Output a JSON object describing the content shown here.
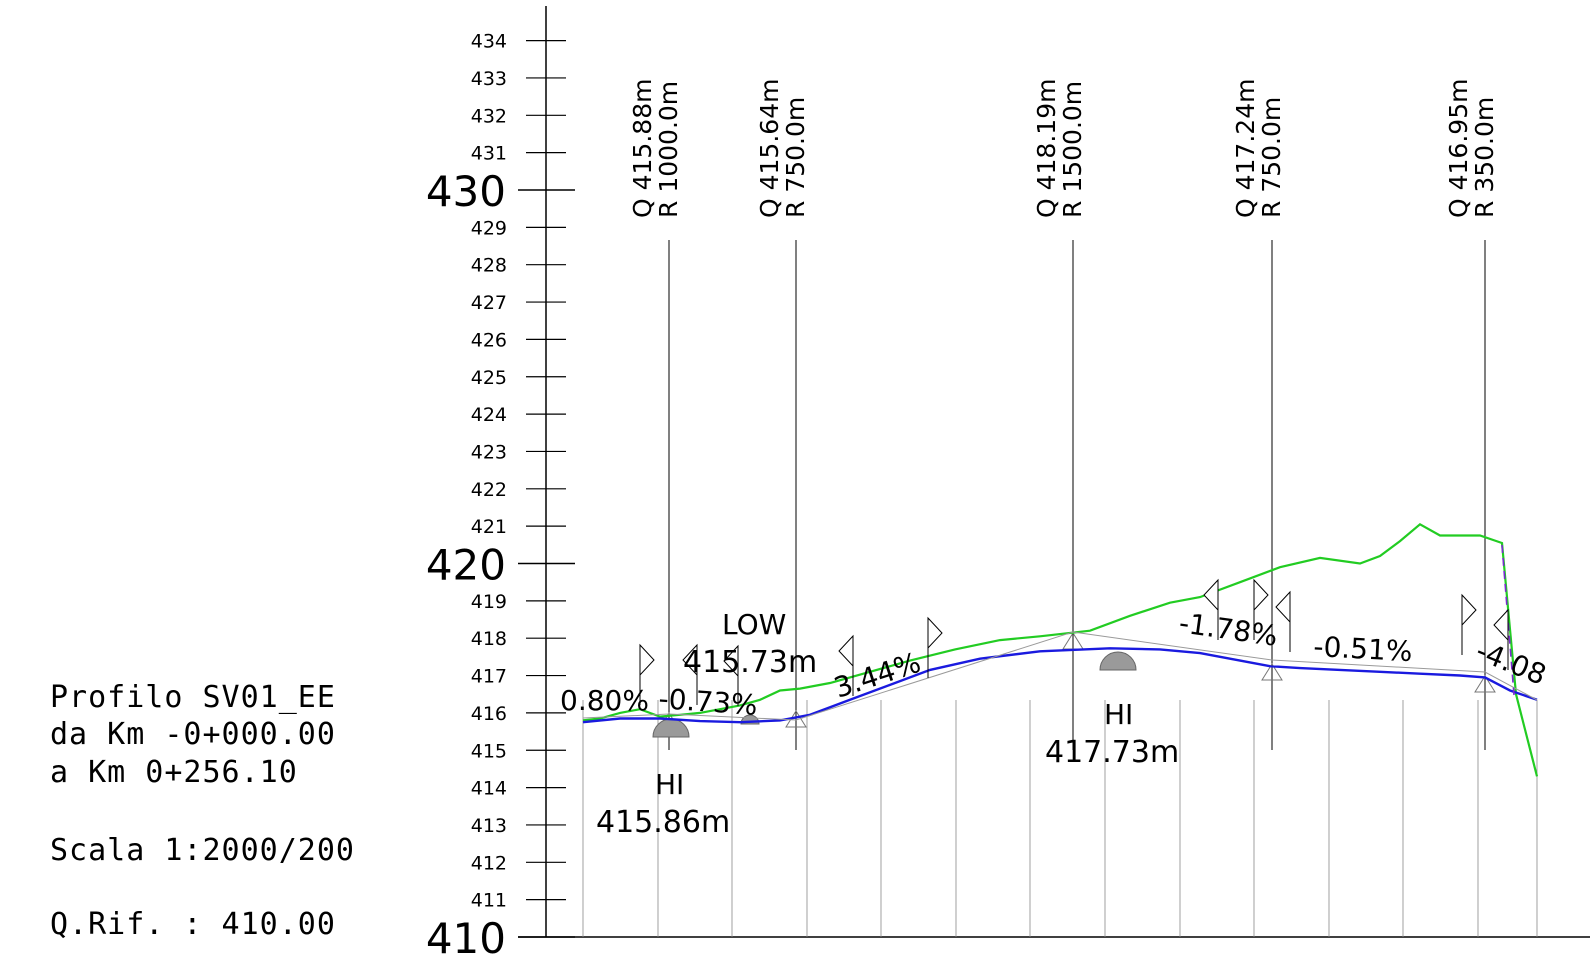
{
  "info": {
    "profile": "Profilo SV01_EE",
    "from": "da Km -0+000.00",
    "to": "a Km 0+256.10",
    "scale": "Scala 1:2000/200",
    "qrif": "Q.Rif. : 410.00"
  },
  "axis": {
    "min": 410,
    "max": 434,
    "major_ticks": [
      "410",
      "420",
      "430"
    ],
    "minor_ticks": [
      "411",
      "412",
      "413",
      "414",
      "415",
      "416",
      "417",
      "418",
      "419",
      "421",
      "422",
      "423",
      "424",
      "425",
      "426",
      "427",
      "428",
      "429",
      "431",
      "432",
      "433",
      "434"
    ]
  },
  "vertical_curves": [
    {
      "q": "Q 415.88m",
      "r": "R 1000.0m"
    },
    {
      "q": "Q 415.64m",
      "r": "R 750.0m"
    },
    {
      "q": "Q 418.19m",
      "r": "R 1500.0m"
    },
    {
      "q": "Q 417.24m",
      "r": "R 750.0m"
    },
    {
      "q": "Q 416.95m",
      "r": "R 350.0m"
    }
  ],
  "annotations": {
    "low_label": "LOW",
    "low_value": "415.73m",
    "hi1_label": "HI",
    "hi1_value": "415.86m",
    "hi2_label": "HI",
    "hi2_value": "417.73m"
  },
  "grades": [
    "0.80%",
    "-0.73%",
    "3.44%",
    "-1.78%",
    "-0.51%",
    "-4.08"
  ],
  "colors": {
    "ground_line": "#22cc22",
    "project_line": "#1a1adf",
    "tangent_line": "#9a9a9a",
    "dashed_line": "#7a2ad0"
  },
  "chart_data": {
    "type": "line",
    "ylabel": "",
    "ylim": [
      410,
      434
    ],
    "series": [
      {
        "values": [
          415.8,
          415.85,
          416.0,
          416.1,
          415.9,
          415.95,
          416.0,
          416.1,
          416.2,
          416.35,
          416.6,
          416.65,
          416.8,
          417.1,
          417.4,
          417.7,
          417.95,
          418.05,
          418.2,
          418.6,
          418.95,
          419.1,
          419.5,
          419.9,
          420.15,
          420.0,
          420.2,
          420.6,
          421.05,
          420.75,
          420.75,
          420.55,
          416.5,
          414.3
        ]
      },
      {
        "values": [
          415.75,
          415.85,
          415.85,
          415.78,
          415.75,
          415.8,
          415.95,
          416.35,
          416.75,
          417.15,
          417.45,
          417.65,
          417.73,
          417.7,
          417.6,
          417.4,
          417.25,
          417.2,
          417.15,
          417.1,
          417.05,
          417.0,
          416.95,
          416.6,
          416.35
        ]
      }
    ]
  }
}
